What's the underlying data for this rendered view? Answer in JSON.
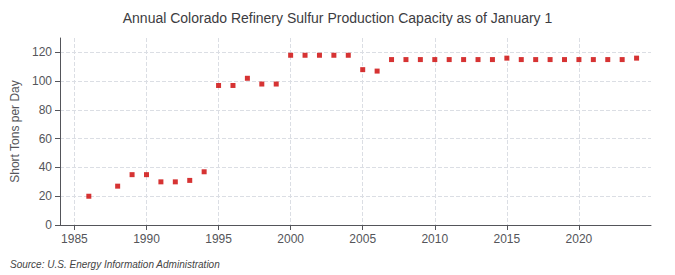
{
  "chart_data": {
    "type": "scatter",
    "title": "Annual Colorado Refinery Sulfur Production Capacity as of January 1",
    "ylabel": "Short Tons per Day",
    "annotation": "Source: U.S. Energy Information Administration",
    "x": [
      1986,
      1988,
      1989,
      1990,
      1991,
      1992,
      1993,
      1994,
      1995,
      1996,
      1997,
      1998,
      1999,
      2000,
      2001,
      2002,
      2003,
      2004,
      2005,
      2006,
      2007,
      2008,
      2009,
      2010,
      2011,
      2012,
      2013,
      2014,
      2015,
      2016,
      2017,
      2018,
      2019,
      2020,
      2021,
      2022,
      2023,
      2024
    ],
    "values": [
      20,
      27,
      35,
      35,
      30,
      30,
      31,
      37,
      97,
      97,
      102,
      98,
      98,
      118,
      118,
      118,
      118,
      118,
      108,
      107,
      115,
      115,
      115,
      115,
      115,
      115,
      115,
      115,
      116,
      115,
      115,
      115,
      115,
      115,
      115,
      115,
      115,
      116
    ],
    "color": "#cc0000",
    "marker": "square",
    "xlim": [
      1984,
      2025
    ],
    "xticks": [
      1985,
      1990,
      1995,
      2000,
      2005,
      2010,
      2015,
      2020
    ],
    "ylim": [
      0,
      130
    ],
    "yticks": [
      0,
      20,
      40,
      60,
      80,
      100,
      120
    ],
    "grid": true
  }
}
